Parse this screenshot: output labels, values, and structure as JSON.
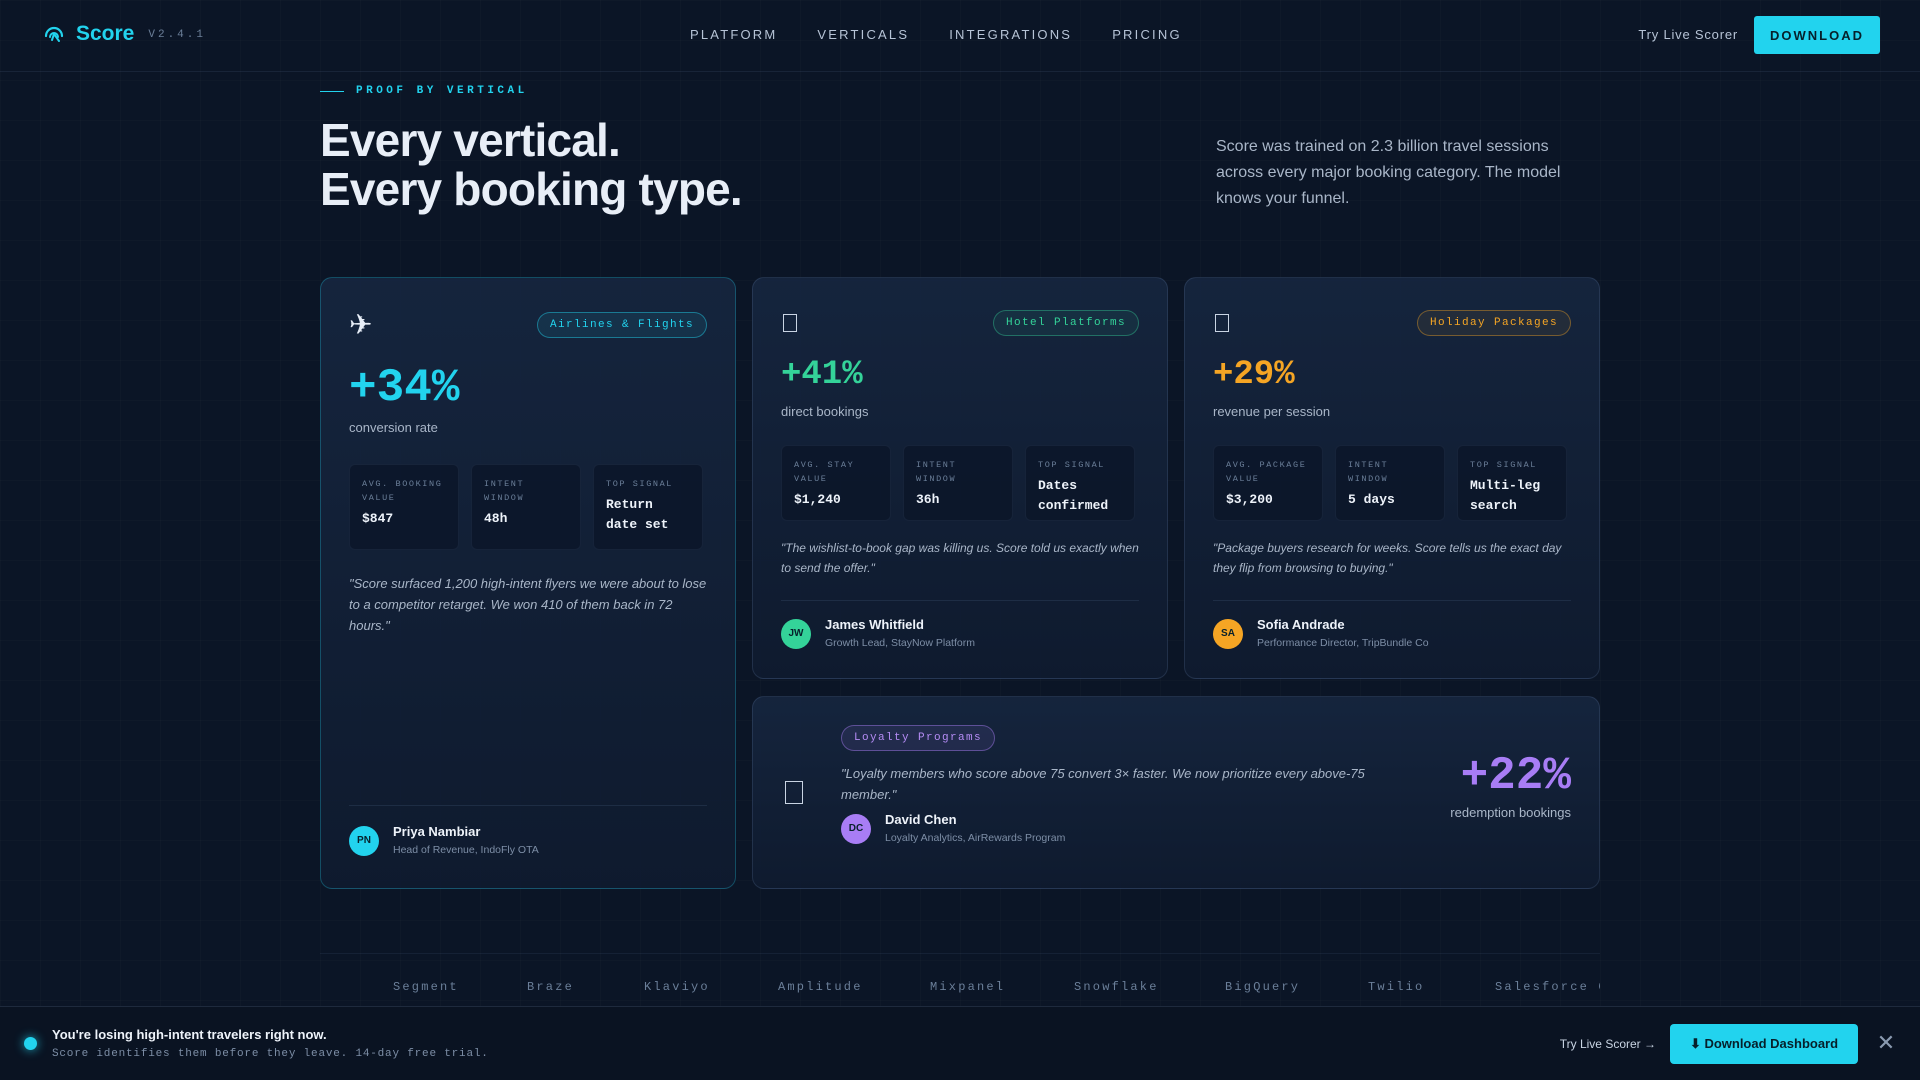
{
  "nav": {
    "brand": "Score",
    "version": "V2.4.1",
    "links": [
      "PLATFORM",
      "VERTICALS",
      "INTEGRATIONS",
      "PRICING"
    ],
    "try_label": "Try Live Scorer",
    "download_label": "DOWNLOAD"
  },
  "hero": {
    "eyebrow": "PROOF BY VERTICAL",
    "title_line1": "Every vertical.",
    "title_line2": "Every booking type.",
    "description": "Score was trained on 2.3 billion travel sessions across every major booking category. The model knows your funnel."
  },
  "cards": {
    "airlines": {
      "icon": "airplane-icon",
      "badge": "Airlines & Flights",
      "stat": "+34%",
      "stat_label": "conversion rate",
      "metrics": [
        {
          "label": "AVG. BOOKING VALUE",
          "value": "$847"
        },
        {
          "label": "INTENT WINDOW",
          "value": "48h"
        },
        {
          "label": "TOP SIGNAL",
          "value": "Return date set"
        }
      ],
      "quote": "\"Score surfaced 1,200 high-intent flyers we were about to lose to a competitor retarget. We won 410 of them back in 72 hours.\"",
      "person": {
        "initials": "PN",
        "name": "Priya Nambiar",
        "role": "Head of Revenue, IndoFly OTA"
      },
      "accent": "#22d3ee"
    },
    "hotel": {
      "icon": "hotel-icon",
      "badge": "Hotel Platforms",
      "stat": "+41%",
      "stat_label": "direct bookings",
      "metrics": [
        {
          "label": "AVG. STAY VALUE",
          "value": "$1,240"
        },
        {
          "label": "INTENT WINDOW",
          "value": "36h"
        },
        {
          "label": "TOP SIGNAL",
          "value": "Dates confirmed"
        }
      ],
      "quote": "\"The wishlist-to-book gap was killing us. Score told us exactly when to send the offer.\"",
      "person": {
        "initials": "JW",
        "name": "James Whitfield",
        "role": "Growth Lead, StayNow Platform"
      },
      "accent": "#34d399"
    },
    "holiday": {
      "icon": "package-icon",
      "badge": "Holiday Packages",
      "stat": "+29%",
      "stat_label": "revenue per session",
      "metrics": [
        {
          "label": "AVG. PACKAGE VALUE",
          "value": "$3,200"
        },
        {
          "label": "INTENT WINDOW",
          "value": "5 days"
        },
        {
          "label": "TOP SIGNAL",
          "value": "Multi-leg search"
        }
      ],
      "quote": "\"Package buyers research for weeks. Score tells us the exact day they flip from browsing to buying.\"",
      "person": {
        "initials": "SA",
        "name": "Sofia Andrade",
        "role": "Performance Director, TripBundle Co"
      },
      "accent": "#f5a524"
    },
    "loyalty": {
      "icon": "loyalty-icon",
      "badge": "Loyalty Programs",
      "quote": "\"Loyalty members who score above 75 convert 3× faster. We now prioritize every above-75 member.\"",
      "person": {
        "initials": "DC",
        "name": "David Chen",
        "role": "Loyalty Analytics, AirRewards Program"
      },
      "stat": "+22%",
      "stat_label": "redemption bookings",
      "accent": "#a87df5"
    }
  },
  "integrations": [
    "Segment",
    "Braze",
    "Klaviyo",
    "Amplitude",
    "Mixpanel",
    "Snowflake",
    "BigQuery",
    "Twilio",
    "Salesforce C"
  ],
  "banner": {
    "title": "You're losing high-intent travelers right now.",
    "subtitle": "Score identifies them before they leave. 14-day free trial.",
    "try_label": "Try Live Scorer →",
    "download_label": "⬇ Download Dashboard",
    "close_icon": "close-icon"
  }
}
